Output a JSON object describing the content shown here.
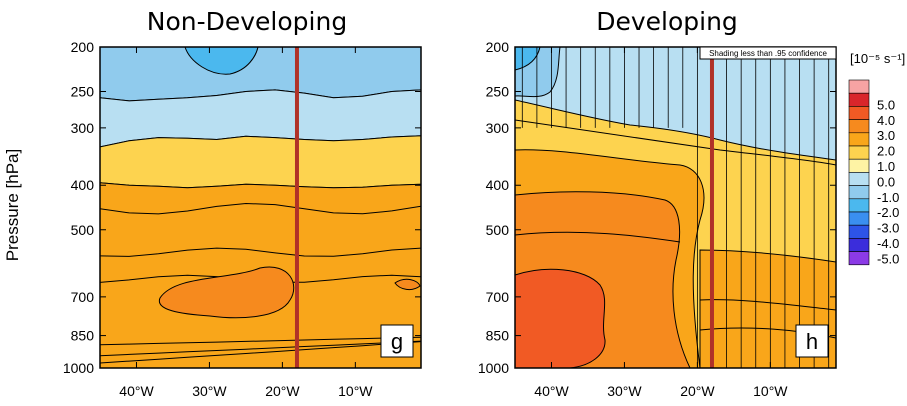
{
  "chart_data": [
    {
      "type": "heatmap",
      "title": "Non-Developing",
      "panel_label": "g",
      "ylabel": "Pressure [hPa]",
      "x_ticks": [
        "40°W",
        "30°W",
        "20°W",
        "10°W"
      ],
      "x_tick_values": [
        -40,
        -30,
        -20,
        -10
      ],
      "xlim": [
        -45,
        -1
      ],
      "y_ticks": [
        200,
        250,
        300,
        400,
        500,
        700,
        850,
        1000
      ],
      "ylim": [
        1000,
        200
      ],
      "y_scale": "log",
      "marker_longitude": -18,
      "marker_color": "#b03228",
      "bands": [
        {
          "level": "1.0 to 2.0",
          "color": "#f9a61a",
          "top_hpa": [
            395,
            400,
            402,
            405,
            402,
            398,
            400,
            403,
            405,
            404,
            400,
            398
          ],
          "bottom_hpa": [
            1000,
            1000,
            1000,
            1000,
            1000,
            1000,
            1000,
            1000,
            1000,
            1000,
            1000,
            1000
          ]
        },
        {
          "level": "0.0 to 1.0",
          "color": "#fdd34f",
          "top_hpa": [
            330,
            320,
            315,
            316,
            318,
            313,
            315,
            318,
            320,
            318,
            314,
            312
          ],
          "bottom_hpa": [
            395,
            400,
            402,
            405,
            402,
            398,
            400,
            403,
            405,
            404,
            400,
            398
          ]
        },
        {
          "level": "-1.0 to 0.0",
          "color": "#b8dff2",
          "top_hpa": [
            258,
            262,
            260,
            258,
            255,
            250,
            248,
            252,
            258,
            256,
            250,
            248
          ],
          "bottom_hpa": [
            330,
            320,
            315,
            316,
            318,
            313,
            315,
            318,
            320,
            318,
            314,
            312
          ]
        },
        {
          "level": "-2.0 to -1.0",
          "color": "#90cbed",
          "top_hpa": [
            200,
            200,
            200,
            200,
            200,
            200,
            200,
            200,
            200,
            200,
            200,
            200
          ],
          "bottom_hpa": [
            258,
            262,
            260,
            258,
            255,
            250,
            248,
            252,
            258,
            256,
            250,
            248
          ]
        },
        {
          "level": "-3.0 to -2.0",
          "color": "#4bb8ee",
          "region": "near 200 hPa, 30°W–22°W"
        },
        {
          "level": "2.0 to 3.0",
          "color": "#f68a1e",
          "region": "near 700 hPa, 38°W–19°W"
        }
      ]
    },
    {
      "type": "heatmap",
      "title": "Developing",
      "panel_label": "h",
      "x_ticks": [
        "40°W",
        "30°W",
        "20°W",
        "10°W"
      ],
      "x_tick_values": [
        -40,
        -30,
        -20,
        -10
      ],
      "xlim": [
        -45,
        -1
      ],
      "y_ticks": [
        200,
        250,
        300,
        400,
        500,
        700,
        850,
        1000
      ],
      "ylim": [
        1000,
        200
      ],
      "y_scale": "log",
      "marker_longitude": -18,
      "marker_color": "#b03228",
      "annotation": "Shading less than .95 confidence",
      "hatch_longitudes": [
        -44,
        -42,
        -40,
        -38,
        -36,
        -34,
        -32,
        -30,
        -28,
        -26,
        -24,
        -22,
        -20,
        -16,
        -14,
        -12,
        -10,
        -8,
        -6,
        -4,
        -2
      ],
      "bands": [
        {
          "level": "2.0 to 3.0",
          "color": "#f68a1e",
          "region": "lower half, west of 20°W"
        },
        {
          "level": "3.0 to 4.0",
          "color": "#f15a24",
          "region": "700–1000 hPa, 44°W–28°W"
        },
        {
          "level": "1.0 to 2.0",
          "color": "#f9a61a"
        },
        {
          "level": "0.0 to 1.0",
          "color": "#fdd34f"
        },
        {
          "level": "-1.0 to 0.0",
          "color": "#b8dff2"
        },
        {
          "level": "-2.0 to -1.0",
          "color": "#90cbed"
        },
        {
          "level": "-3.0 to -2.0",
          "color": "#4bb8ee",
          "region": "near 200 hPa, 44°W–30°W"
        }
      ]
    }
  ],
  "colorbar": {
    "unit_label": "[10⁻⁵ s⁻¹]",
    "labels": [
      "5.0",
      "4.0",
      "3.0",
      "2.0",
      "1.0",
      "0.0",
      "-1.0",
      "-2.0",
      "-3.0",
      "-4.0",
      "-5.0"
    ],
    "colors": [
      "#f7a3a3",
      "#d9262b",
      "#f15a24",
      "#f68a1e",
      "#f9a61a",
      "#fdd34f",
      "#fef3a4",
      "#b8dff2",
      "#90cbed",
      "#4bb8ee",
      "#3a8ff0",
      "#2d54e8",
      "#3b2ddb",
      "#8b3ae6"
    ]
  }
}
